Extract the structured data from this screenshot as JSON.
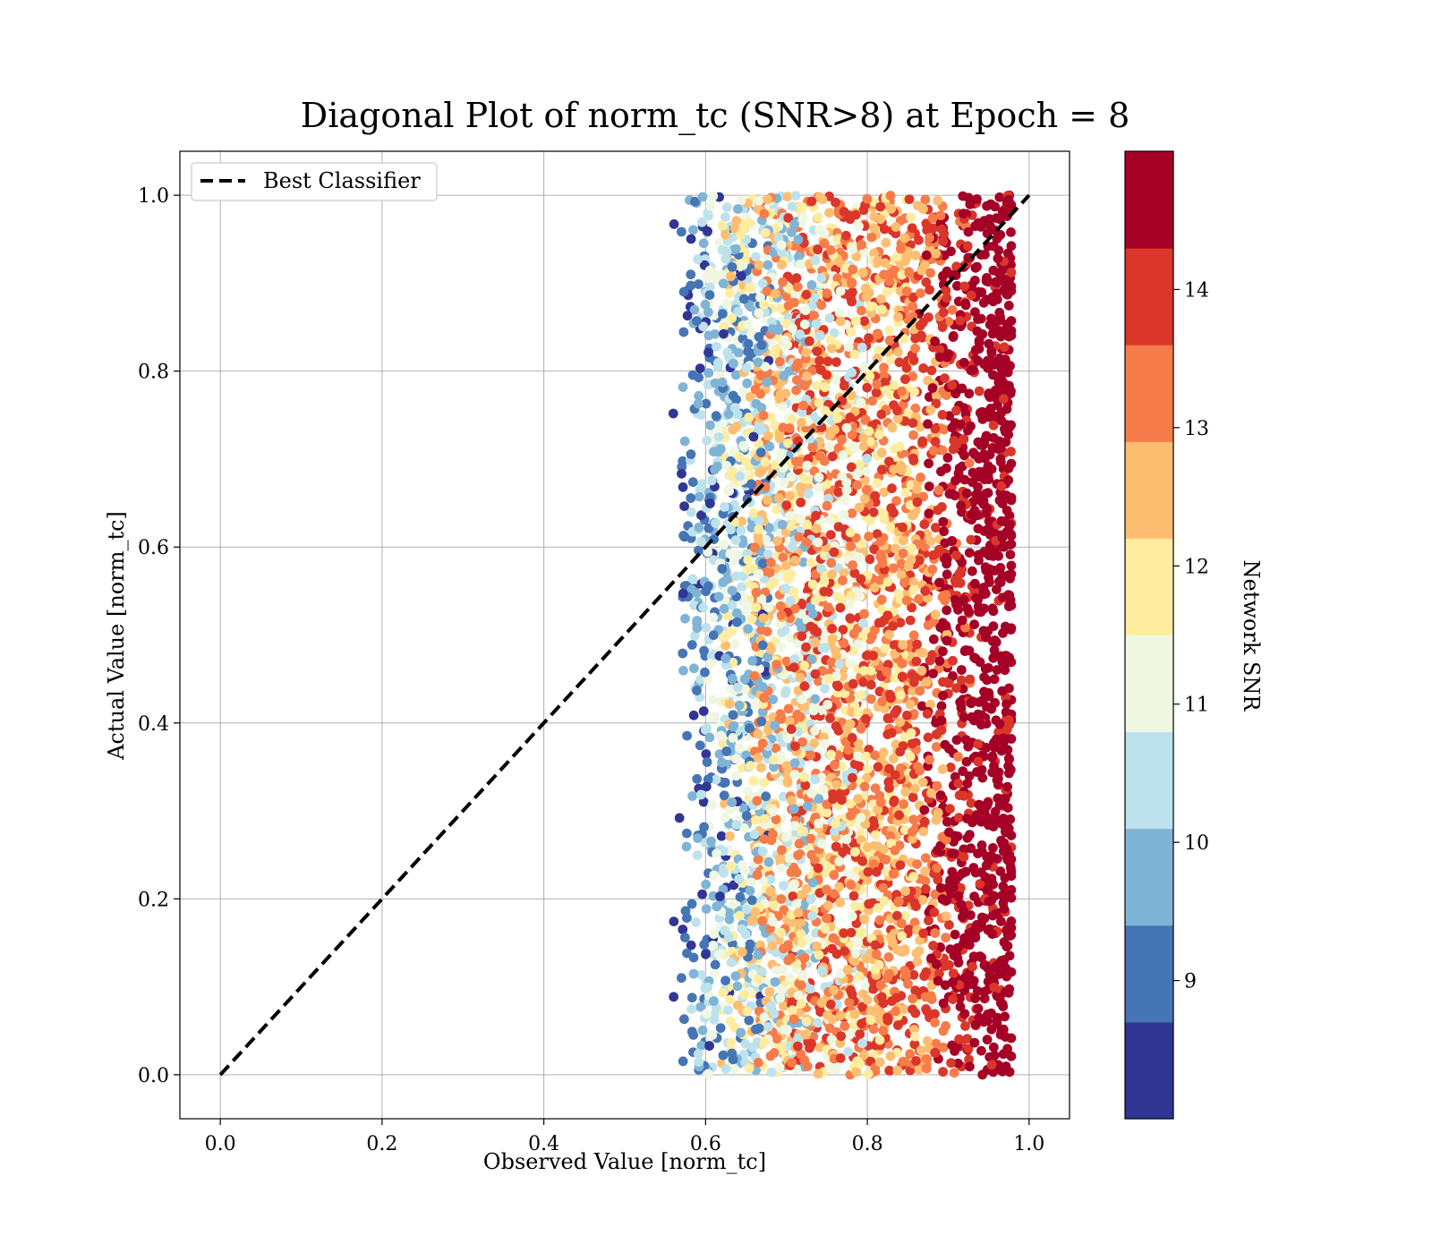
{
  "chart_data": {
    "type": "scatter",
    "title": "Diagonal Plot of norm_tc (SNR>8) at Epoch = 8",
    "xlabel": "Observed Value [norm_tc]",
    "ylabel": "Actual Value [norm_tc]",
    "xlim": [
      -0.05,
      1.05
    ],
    "ylim": [
      -0.05,
      1.05
    ],
    "x_ticks": [
      "0.0",
      "0.2",
      "0.4",
      "0.6",
      "0.8",
      "1.0"
    ],
    "y_ticks": [
      "0.0",
      "0.2",
      "0.4",
      "0.6",
      "0.8",
      "1.0"
    ],
    "grid": true,
    "legend": {
      "position": "top-left",
      "entries": [
        "Best Classifier"
      ]
    },
    "reference_line": {
      "name": "Best Classifier",
      "style": "dashed",
      "color": "#000000",
      "x": [
        0.0,
        1.0
      ],
      "y": [
        0.0,
        1.0
      ]
    },
    "scatter_summary": {
      "y_range": [
        0.0,
        1.0
      ],
      "x_range_min_by_snr": [
        {
          "snr_bin": [
            8.0,
            8.5
          ],
          "x_range": [
            0.56,
            0.64
          ]
        },
        {
          "snr_bin": [
            8.5,
            9.5
          ],
          "x_range": [
            0.57,
            0.68
          ]
        },
        {
          "snr_bin": [
            9.5,
            10.5
          ],
          "x_range": [
            0.58,
            0.74
          ]
        },
        {
          "snr_bin": [
            10.5,
            11.5
          ],
          "x_range": [
            0.6,
            0.8
          ]
        },
        {
          "snr_bin": [
            11.5,
            12.5
          ],
          "x_range": [
            0.62,
            0.86
          ]
        },
        {
          "snr_bin": [
            12.5,
            13.5
          ],
          "x_range": [
            0.66,
            0.9
          ]
        },
        {
          "snr_bin": [
            13.5,
            14.0
          ],
          "x_range": [
            0.7,
            0.93
          ]
        },
        {
          "snr_bin": [
            14.0,
            15.0
          ],
          "x_range": [
            0.72,
            0.98
          ]
        }
      ]
    },
    "colorbar": {
      "label": "Network SNR",
      "range": [
        8.0,
        15.0
      ],
      "ticks": [
        "9",
        "10",
        "11",
        "12",
        "13",
        "14"
      ],
      "tick_values": [
        9,
        10,
        11,
        12,
        13,
        14
      ],
      "bins": [
        {
          "range": [
            8.0,
            8.7
          ],
          "color": "#313695"
        },
        {
          "range": [
            8.7,
            9.4
          ],
          "color": "#4575b4"
        },
        {
          "range": [
            9.4,
            10.1
          ],
          "color": "#80b4d6"
        },
        {
          "range": [
            10.1,
            10.8
          ],
          "color": "#bee2ec"
        },
        {
          "range": [
            10.8,
            11.5
          ],
          "color": "#eff7e2"
        },
        {
          "range": [
            11.5,
            12.2
          ],
          "color": "#feeda1"
        },
        {
          "range": [
            12.2,
            12.9
          ],
          "color": "#fdbe71"
        },
        {
          "range": [
            12.9,
            13.6
          ],
          "color": "#f67c4a"
        },
        {
          "range": [
            13.6,
            14.3
          ],
          "color": "#da362a"
        },
        {
          "range": [
            14.3,
            15.0
          ],
          "color": "#a50026"
        }
      ]
    }
  }
}
